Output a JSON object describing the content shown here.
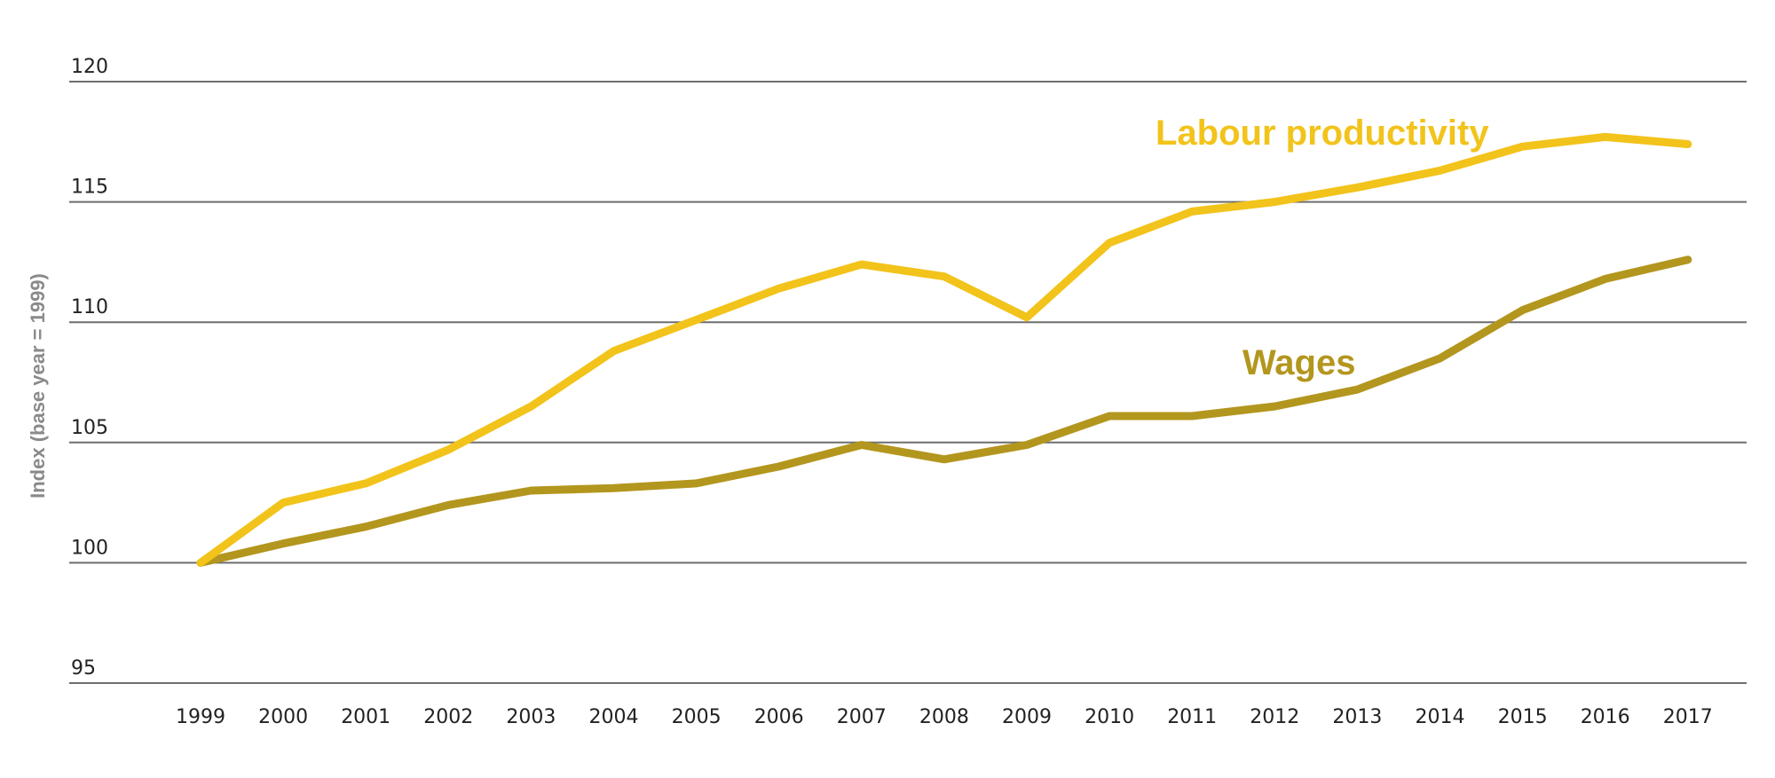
{
  "chart_data": {
    "type": "line",
    "ylabel": "Index (base year = 1999)",
    "ylim": [
      95,
      120
    ],
    "yticks": [
      "95",
      "100",
      "105",
      "110",
      "115",
      "120"
    ],
    "grid": true,
    "x": [
      "1999",
      "2000",
      "2001",
      "2002",
      "2003",
      "2004",
      "2005",
      "2006",
      "2007",
      "2008",
      "2009",
      "2010",
      "2011",
      "2012",
      "2013",
      "2014",
      "2015",
      "2016",
      "2017"
    ],
    "series": [
      {
        "name": "Labour productivity",
        "color": "#F2C31A",
        "values": [
          100.0,
          102.5,
          103.3,
          104.7,
          106.5,
          108.8,
          110.1,
          111.4,
          112.4,
          111.9,
          110.2,
          113.3,
          114.6,
          115.0,
          115.6,
          116.3,
          117.3,
          117.7,
          117.4
        ]
      },
      {
        "name": "Wages",
        "color": "#B3961E",
        "values": [
          100.0,
          100.8,
          101.5,
          102.4,
          103.0,
          103.1,
          103.3,
          104.0,
          104.9,
          104.3,
          104.9,
          106.1,
          106.1,
          106.5,
          107.2,
          108.5,
          110.5,
          111.8,
          112.6
        ]
      }
    ]
  }
}
